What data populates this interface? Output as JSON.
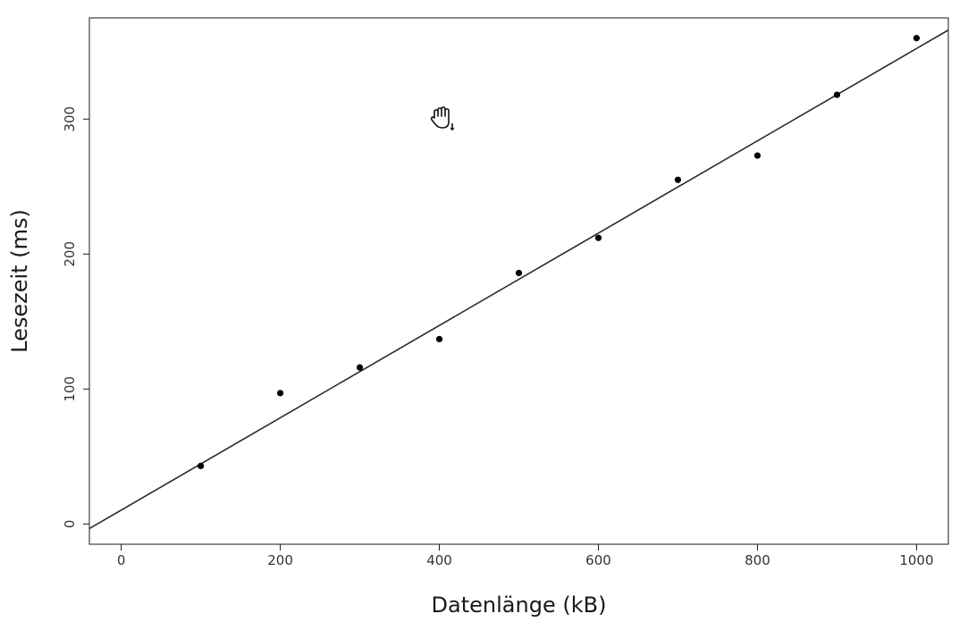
{
  "chart_data": {
    "type": "scatter",
    "xlabel": "Datenlänge (kB)",
    "ylabel": "Lesezeit (ms)",
    "xlim": [
      -40,
      1040
    ],
    "ylim": [
      -15,
      375
    ],
    "x_ticks": [
      0,
      200,
      400,
      600,
      800,
      1000
    ],
    "y_ticks": [
      0,
      100,
      200,
      300
    ],
    "grid": false,
    "series": [
      {
        "x": [
          100,
          200,
          300,
          400,
          500,
          600,
          700,
          800,
          900,
          1000
        ],
        "y": [
          43,
          97,
          116,
          137,
          186,
          212,
          255,
          273,
          318,
          360
        ]
      }
    ],
    "regression_line": {
      "intercept": 10.3,
      "slope": 0.342
    }
  },
  "cursor": {
    "icon": "hand-cursor-icon"
  }
}
